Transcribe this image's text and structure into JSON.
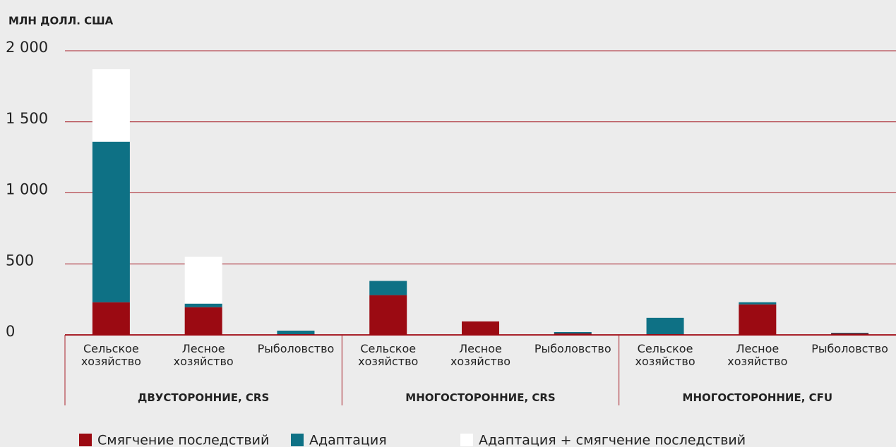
{
  "chart_data": {
    "type": "stacked_bar",
    "y_axis_title": "МЛН ДОЛЛ. США",
    "categories": [
      "Сельское хозяйство",
      "Лесное хозяйство",
      "Рыболовство",
      "Сельское хозяйство",
      "Лесное хозяйство",
      "Рыболовство",
      "Сельское хозяйство",
      "Лесное хозяйство",
      "Рыболовство"
    ],
    "groups": [
      "ДВУСТОРОННИЕ, CRS",
      "МНОГОСТОРОННИЕ, CRS",
      "МНОГОСТОРОННИЕ, CFU"
    ],
    "series": [
      {
        "name": "Смягчение последствий",
        "color": "#9b0a12",
        "values": [
          230,
          195,
          5,
          280,
          95,
          10,
          5,
          215,
          10
        ]
      },
      {
        "name": "Адаптация",
        "color": "#0e7185",
        "values": [
          1130,
          25,
          25,
          100,
          0,
          10,
          115,
          15,
          5
        ]
      },
      {
        "name": "Адаптация + смягчение последствий",
        "color": "#ffffff",
        "values": [
          510,
          330,
          0,
          0,
          0,
          0,
          0,
          0,
          0
        ]
      }
    ],
    "ylim": [
      0,
      2000
    ],
    "yticks": [
      0,
      500,
      {
        "value": 1000,
        "label": "1 000"
      },
      {
        "value": 1500,
        "label": "1 500"
      },
      {
        "value": 2000,
        "label": "2 000"
      }
    ],
    "grid": true
  }
}
